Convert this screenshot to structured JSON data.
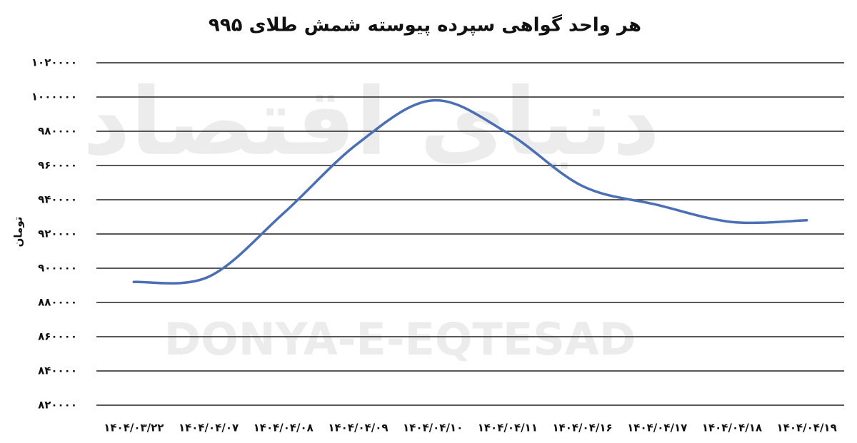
{
  "chart_data": {
    "type": "line",
    "title": "هر واحد گواهی سپرده پیوسته شمش طلای ۹۹۵",
    "y_label": "تومان",
    "watermark": [
      "دنیای اقتصاد",
      "DONYA-E-EQTESAD"
    ],
    "categories": [
      "۱۴۰۴/۰۳/۲۲",
      "۱۴۰۴/۰۴/۰۷",
      "۱۴۰۴/۰۴/۰۸",
      "۱۴۰۴/۰۴/۰۹",
      "۱۴۰۴/۰۴/۱۰",
      "۱۴۰۴/۰۴/۱۱",
      "۱۴۰۴/۰۴/۱۶",
      "۱۴۰۴/۰۴/۱۷",
      "۱۴۰۴/۰۴/۱۸",
      "۱۴۰۴/۰۴/۱۹"
    ],
    "values": [
      892000,
      895000,
      932000,
      973000,
      998000,
      979000,
      948000,
      937000,
      927000,
      928000
    ],
    "color": "#4a6fb5",
    "ylim": [
      820000,
      1020000
    ],
    "yticks": [
      {
        "value": 820000,
        "label": "۸۲۰۰۰۰"
      },
      {
        "value": 840000,
        "label": "۸۴۰۰۰۰"
      },
      {
        "value": 860000,
        "label": "۸۶۰۰۰۰"
      },
      {
        "value": 880000,
        "label": "۸۸۰۰۰۰"
      },
      {
        "value": 900000,
        "label": "۹۰۰۰۰۰"
      },
      {
        "value": 920000,
        "label": "۹۲۰۰۰۰"
      },
      {
        "value": 940000,
        "label": "۹۴۰۰۰۰"
      },
      {
        "value": 960000,
        "label": "۹۶۰۰۰۰"
      },
      {
        "value": 980000,
        "label": "۹۸۰۰۰۰"
      },
      {
        "value": 1000000,
        "label": "۱۰۰۰۰۰۰"
      },
      {
        "value": 1020000,
        "label": "۱۰۲۰۰۰۰"
      }
    ],
    "grid": true
  }
}
